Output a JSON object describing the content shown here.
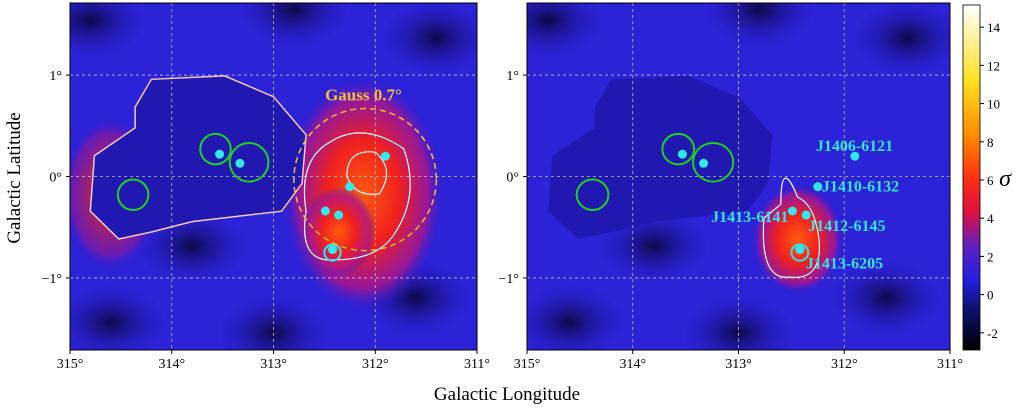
{
  "chart_data": {
    "type": "skymap",
    "x_label": "Galactic Longitude",
    "y_label": "Galactic Latitude",
    "panels": [
      {
        "xlim": [
          315,
          311
        ],
        "ylim": [
          -1.71,
          1.71
        ],
        "source_labels": false,
        "xticks": [
          {
            "value": 315,
            "label": "315°"
          },
          {
            "value": 314,
            "label": "314°"
          },
          {
            "value": 313,
            "label": "313°"
          },
          {
            "value": 312,
            "label": "312°"
          },
          {
            "value": 311,
            "label": "311°"
          }
        ],
        "yticks": [
          {
            "value": 1,
            "label": "1°"
          },
          {
            "value": 0,
            "label": "0°"
          },
          {
            "value": -1,
            "label": "−1°"
          }
        ],
        "annotation": {
          "text": "Gauss 0.7°",
          "l": 312.1,
          "b": -0.03,
          "r": 0.7
        }
      },
      {
        "xlim": [
          315,
          311
        ],
        "ylim": [
          -1.71,
          1.71
        ],
        "source_labels": true,
        "xticks": [
          {
            "value": 315,
            "label": "315°"
          },
          {
            "value": 314,
            "label": "314°"
          },
          {
            "value": 313,
            "label": "313°"
          },
          {
            "value": 312,
            "label": "312°"
          },
          {
            "value": 311,
            "label": "311°"
          }
        ],
        "yticks": [
          {
            "value": 1,
            "label": "1°"
          },
          {
            "value": 0,
            "label": "0°"
          },
          {
            "value": -1,
            "label": "−1°"
          }
        ]
      }
    ],
    "sources": [
      {
        "name": "J1406-6121",
        "l": 311.9,
        "b": 0.2
      },
      {
        "name": "J1410-6132",
        "l": 312.25,
        "b": -0.1
      },
      {
        "name": "J1413-6141",
        "l": 312.49,
        "b": -0.34
      },
      {
        "name": "J1412-6145",
        "l": 312.36,
        "b": -0.38
      },
      {
        "name": "J1413-6205",
        "l": 312.42,
        "b": -0.72
      },
      {
        "l": 313.53,
        "b": 0.22
      },
      {
        "l": 313.33,
        "b": 0.13
      }
    ],
    "rings": [
      {
        "l": 314.38,
        "b": -0.18,
        "r": 0.15
      },
      {
        "l": 313.57,
        "b": 0.27,
        "r": 0.15
      },
      {
        "l": 313.24,
        "b": 0.14,
        "r": 0.19
      },
      {
        "l": 312.42,
        "b": -0.75,
        "r": 0.08
      }
    ],
    "colorbar": {
      "label": "σ",
      "lim": [
        -2.9,
        15.16
      ],
      "ticks": [
        -2,
        0,
        2,
        4,
        6,
        8,
        10,
        12,
        14
      ]
    }
  }
}
